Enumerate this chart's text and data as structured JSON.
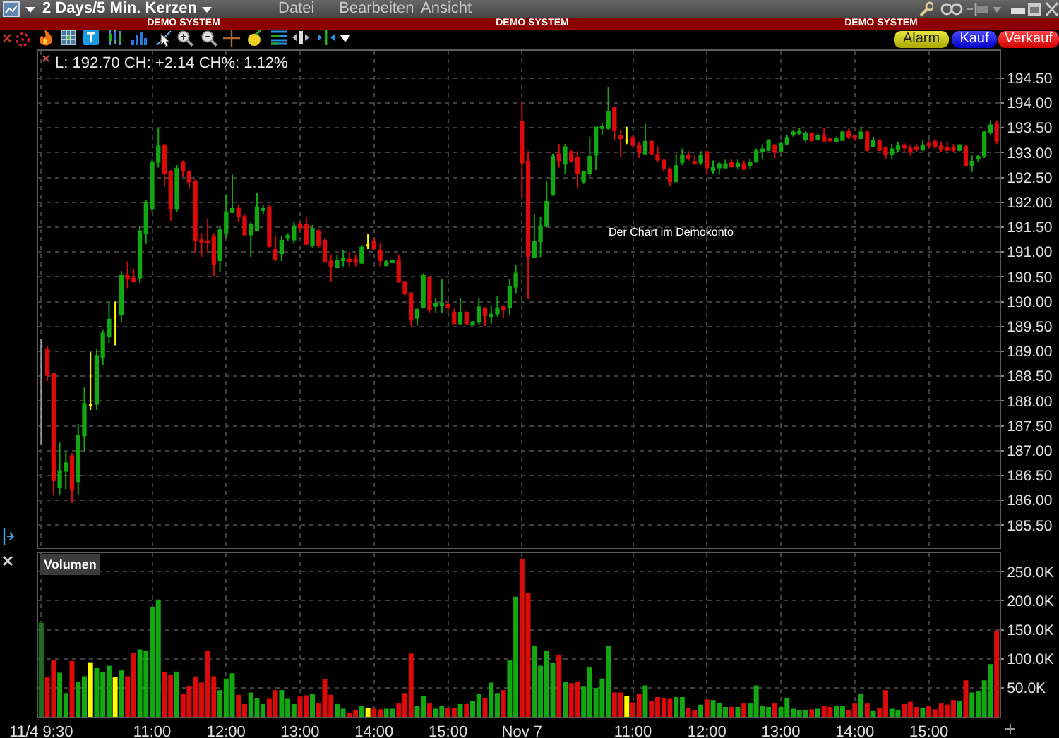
{
  "chart_data": [
    {
      "type": "candlestick",
      "title": "2 Days/5 Min. Kerzen",
      "tick_labels": "y",
      "grid": true,
      "categories": [
        null,
        null,
        null,
        null,
        null,
        null,
        null,
        null,
        null,
        null,
        null,
        null,
        null,
        null,
        null,
        null,
        null,
        null,
        null,
        null,
        null,
        null,
        null,
        null,
        null,
        null,
        null,
        null,
        null,
        null,
        null,
        null,
        null,
        null,
        null,
        null,
        null,
        null,
        null,
        null,
        null,
        null,
        null,
        null,
        null,
        null,
        null,
        null,
        null,
        null,
        null,
        null,
        null,
        null,
        null,
        null,
        null,
        null,
        null,
        null,
        null,
        null,
        null,
        null,
        null,
        null,
        null,
        null,
        null,
        null,
        null,
        null,
        null,
        null,
        null,
        null,
        null,
        null,
        null,
        null,
        null,
        null,
        null,
        null,
        null,
        null,
        null,
        null,
        null,
        null,
        null,
        null,
        null,
        null,
        null,
        null,
        null,
        null,
        null,
        null,
        null,
        null,
        null,
        null,
        null,
        null,
        null,
        null,
        null,
        null,
        null,
        null,
        null,
        null,
        null,
        null,
        null,
        null,
        null,
        null,
        null,
        null,
        null,
        null,
        null,
        null,
        null,
        null,
        null,
        null,
        null,
        null,
        null,
        null,
        null,
        null,
        null,
        null,
        null,
        null,
        null,
        null,
        null,
        null,
        null,
        null,
        null,
        null,
        null,
        null,
        null,
        null,
        null,
        null,
        null,
        null
      ],
      "ohlc": [
        [
          189.1,
          189.24,
          187.11,
          189.1
        ],
        [
          189.04,
          189.1,
          188.4,
          188.52
        ],
        [
          188.55,
          188.55,
          186.1,
          186.4
        ],
        [
          186.26,
          187.16,
          186.12,
          186.59
        ],
        [
          186.59,
          186.97,
          186.23,
          186.75
        ],
        [
          186.88,
          186.95,
          185.95,
          186.21
        ],
        [
          186.38,
          187.54,
          186.1,
          187.3
        ],
        [
          187.3,
          188.27,
          186.99,
          187.94
        ],
        [
          187.92,
          188.98,
          187.82,
          187.92
        ],
        [
          187.94,
          189.05,
          187.82,
          188.91
        ],
        [
          188.87,
          189.43,
          188.72,
          189.36
        ],
        [
          189.31,
          190.0,
          189.17,
          189.64
        ],
        [
          189.69,
          190.0,
          189.12,
          189.69
        ],
        [
          189.74,
          190.62,
          189.59,
          190.52
        ],
        [
          190.52,
          190.81,
          190.27,
          190.46
        ],
        [
          190.47,
          190.66,
          190.38,
          190.41
        ],
        [
          190.48,
          191.52,
          190.38,
          191.42
        ],
        [
          191.38,
          192.04,
          191.16,
          191.99
        ],
        [
          191.88,
          192.86,
          191.8,
          192.81
        ],
        [
          192.81,
          193.49,
          192.7,
          193.13
        ],
        [
          193.15,
          193.17,
          192.32,
          192.58
        ],
        [
          192.61,
          192.65,
          191.63,
          191.88
        ],
        [
          191.88,
          192.75,
          191.8,
          192.68
        ],
        [
          192.8,
          192.84,
          192.51,
          192.63
        ],
        [
          192.61,
          192.65,
          192.27,
          192.41
        ],
        [
          192.41,
          192.46,
          190.99,
          191.23
        ],
        [
          191.24,
          191.38,
          190.9,
          191.2
        ],
        [
          191.22,
          191.66,
          190.99,
          191.19
        ],
        [
          191.31,
          191.38,
          190.52,
          190.76
        ],
        [
          190.83,
          191.52,
          190.59,
          191.44
        ],
        [
          191.39,
          192.16,
          191.28,
          191.8
        ],
        [
          191.8,
          192.56,
          191.78,
          191.87
        ],
        [
          191.87,
          191.94,
          191.61,
          191.71
        ],
        [
          191.71,
          191.75,
          191.33,
          191.35
        ],
        [
          191.35,
          191.61,
          190.9,
          191.54
        ],
        [
          191.44,
          192.18,
          191.42,
          191.9
        ],
        [
          191.84,
          191.94,
          191.75,
          191.87
        ],
        [
          191.9,
          191.94,
          191.09,
          191.12
        ],
        [
          191.04,
          191.33,
          190.81,
          190.85
        ],
        [
          190.97,
          191.33,
          190.81,
          191.23
        ],
        [
          191.28,
          191.38,
          191.23,
          191.33
        ],
        [
          191.25,
          191.61,
          191.16,
          191.52
        ],
        [
          191.54,
          191.61,
          191.42,
          191.49
        ],
        [
          191.54,
          191.69,
          191.14,
          191.16
        ],
        [
          191.14,
          191.54,
          191.09,
          191.47
        ],
        [
          191.42,
          191.47,
          191.09,
          191.14
        ],
        [
          191.23,
          191.28,
          190.78,
          190.81
        ],
        [
          190.81,
          190.95,
          190.4,
          190.71
        ],
        [
          190.69,
          190.95,
          190.68,
          190.83
        ],
        [
          190.83,
          191.04,
          190.71,
          190.87
        ],
        [
          190.85,
          191.0,
          190.71,
          190.81
        ],
        [
          190.85,
          190.95,
          190.71,
          190.8
        ],
        [
          190.78,
          191.14,
          190.76,
          191.09
        ],
        [
          191.14,
          191.36,
          191.06,
          191.14
        ],
        [
          191.21,
          191.27,
          191.07,
          191.07
        ],
        [
          191.03,
          191.17,
          190.71,
          190.83
        ],
        [
          190.73,
          190.83,
          190.71,
          190.8
        ],
        [
          190.79,
          190.85,
          190.78,
          190.83
        ],
        [
          190.83,
          190.95,
          190.38,
          190.4
        ],
        [
          190.4,
          190.4,
          190.1,
          190.17
        ],
        [
          190.17,
          190.17,
          189.51,
          189.65
        ],
        [
          189.67,
          189.86,
          189.51,
          189.84
        ],
        [
          189.88,
          190.57,
          189.86,
          190.52
        ],
        [
          190.48,
          190.52,
          189.77,
          189.84
        ],
        [
          189.91,
          190.08,
          189.77,
          189.95
        ],
        [
          189.93,
          190.46,
          189.77,
          189.97
        ],
        [
          189.94,
          190.0,
          189.77,
          189.88
        ],
        [
          189.78,
          189.86,
          189.56,
          189.56
        ],
        [
          189.56,
          190.07,
          189.54,
          189.78
        ],
        [
          189.78,
          189.81,
          189.53,
          189.56
        ],
        [
          189.53,
          189.61,
          189.53,
          189.59
        ],
        [
          189.59,
          190.08,
          189.54,
          189.89
        ],
        [
          189.85,
          189.89,
          189.51,
          189.72
        ],
        [
          189.69,
          189.93,
          189.55,
          189.74
        ],
        [
          189.76,
          190.12,
          189.7,
          189.87
        ],
        [
          189.89,
          189.93,
          189.67,
          189.84
        ],
        [
          189.89,
          190.45,
          189.74,
          190.29
        ],
        [
          190.3,
          190.74,
          190.17,
          190.57
        ],
        [
          193.62,
          194.03,
          192.09,
          192.8
        ],
        [
          192.82,
          193.03,
          190.05,
          190.92
        ],
        [
          190.9,
          191.75,
          190.88,
          191.21
        ],
        [
          191.21,
          191.71,
          190.9,
          191.52
        ],
        [
          191.52,
          192.42,
          191.5,
          192.01
        ],
        [
          192.15,
          192.98,
          192.13,
          192.92
        ],
        [
          192.97,
          193.17,
          192.7,
          192.84
        ],
        [
          192.77,
          193.17,
          192.58,
          193.11
        ],
        [
          193.01,
          193.05,
          192.8,
          192.82
        ],
        [
          192.89,
          193.03,
          192.29,
          192.58
        ],
        [
          192.42,
          192.63,
          192.37,
          192.61
        ],
        [
          192.58,
          193.32,
          192.51,
          192.92
        ],
        [
          192.96,
          193.52,
          192.65,
          193.51
        ],
        [
          193.49,
          193.6,
          193.36,
          193.52
        ],
        [
          193.49,
          194.31,
          193.46,
          193.82
        ],
        [
          193.9,
          193.93,
          193.24,
          193.46
        ],
        [
          193.34,
          193.46,
          192.92,
          193.29
        ],
        [
          193.24,
          193.52,
          193.17,
          193.24
        ],
        [
          193.3,
          193.36,
          193.11,
          193.15
        ],
        [
          193.15,
          193.22,
          192.89,
          193.01
        ],
        [
          192.98,
          193.58,
          192.98,
          193.22
        ],
        [
          193.22,
          193.24,
          192.96,
          192.98
        ],
        [
          192.96,
          193.13,
          192.8,
          192.86
        ],
        [
          192.84,
          192.86,
          192.61,
          192.68
        ],
        [
          192.65,
          192.7,
          192.32,
          192.42
        ],
        [
          192.42,
          192.98,
          192.42,
          192.73
        ],
        [
          192.81,
          193.08,
          192.75,
          192.94
        ],
        [
          192.94,
          193.03,
          192.84,
          192.89
        ],
        [
          192.82,
          192.94,
          192.75,
          192.79
        ],
        [
          192.8,
          193.03,
          192.75,
          192.94
        ],
        [
          193.01,
          193.05,
          192.56,
          192.7
        ],
        [
          192.65,
          192.84,
          192.58,
          192.7
        ],
        [
          192.7,
          192.82,
          192.56,
          192.77
        ],
        [
          192.7,
          192.86,
          192.67,
          192.77
        ],
        [
          192.8,
          192.86,
          192.7,
          192.73
        ],
        [
          192.73,
          192.86,
          192.67,
          192.78
        ],
        [
          192.77,
          192.84,
          192.65,
          192.67
        ],
        [
          192.75,
          192.88,
          192.67,
          192.79
        ],
        [
          192.82,
          193.08,
          192.8,
          193.03
        ],
        [
          193.03,
          193.17,
          192.86,
          193.07
        ],
        [
          193.05,
          193.27,
          193.03,
          193.24
        ],
        [
          193.15,
          193.17,
          192.89,
          193.01
        ],
        [
          193.03,
          193.22,
          193.01,
          193.17
        ],
        [
          193.18,
          193.36,
          193.15,
          193.3
        ],
        [
          193.36,
          193.46,
          193.32,
          193.41
        ],
        [
          193.39,
          193.49,
          193.36,
          193.43
        ],
        [
          193.27,
          193.43,
          193.22,
          193.39
        ],
        [
          193.38,
          193.41,
          193.22,
          193.25
        ],
        [
          193.27,
          193.38,
          193.24,
          193.34
        ],
        [
          193.35,
          193.49,
          193.22,
          193.24
        ],
        [
          193.27,
          193.3,
          193.22,
          193.24
        ],
        [
          193.23,
          193.32,
          193.22,
          193.27
        ],
        [
          193.25,
          193.45,
          193.24,
          193.41
        ],
        [
          193.43,
          193.49,
          193.27,
          193.32
        ],
        [
          193.34,
          193.36,
          193.24,
          193.3
        ],
        [
          193.29,
          193.52,
          193.27,
          193.41
        ],
        [
          193.41,
          193.45,
          193.03,
          193.05
        ],
        [
          193.13,
          193.32,
          193.11,
          193.24
        ],
        [
          193.24,
          193.26,
          193.03,
          193.05
        ],
        [
          193.1,
          193.13,
          192.86,
          192.97
        ],
        [
          192.97,
          193.17,
          192.86,
          193.07
        ],
        [
          193.08,
          193.22,
          193.01,
          193.13
        ],
        [
          193.15,
          193.19,
          193.01,
          193.1
        ],
        [
          193.08,
          193.15,
          192.94,
          193.03
        ],
        [
          193.11,
          193.17,
          193.01,
          193.07
        ],
        [
          193.07,
          193.24,
          193.03,
          193.15
        ],
        [
          193.19,
          193.24,
          193.08,
          193.15
        ],
        [
          193.22,
          193.27,
          193.08,
          193.13
        ],
        [
          193.13,
          193.22,
          193.01,
          193.08
        ],
        [
          193.1,
          193.22,
          193.03,
          193.05
        ],
        [
          193.1,
          193.17,
          193.01,
          193.05
        ],
        [
          193.05,
          193.17,
          193.03,
          193.15
        ],
        [
          193.11,
          193.15,
          192.73,
          192.75
        ],
        [
          192.75,
          192.94,
          192.61,
          192.82
        ],
        [
          192.88,
          192.96,
          192.82,
          192.92
        ],
        [
          192.94,
          193.43,
          192.89,
          193.41
        ],
        [
          193.41,
          193.65,
          193.36,
          193.55
        ],
        [
          193.58,
          193.65,
          193.17,
          193.24
        ]
      ],
      "colors": [
        "#9a9a9a",
        "#dc0a0a",
        "#dc0a0a",
        "#12a812",
        "#12a812",
        "#dc0a0a",
        "#12a812",
        "#12a812",
        "#ffff00",
        "#12a812",
        "#12a812",
        "#12a812",
        "#ffff00",
        "#12a812",
        "#dc0a0a",
        "#dc0a0a",
        "#12a812",
        "#12a812",
        "#12a812",
        "#12a812",
        "#dc0a0a",
        "#dc0a0a",
        "#12a812",
        "#dc0a0a",
        "#dc0a0a",
        "#dc0a0a",
        "#dc0a0a",
        "#dc0a0a",
        "#dc0a0a",
        "#12a812",
        "#12a812",
        "#12a812",
        "#dc0a0a",
        "#dc0a0a",
        "#12a812",
        "#12a812",
        "#12a812",
        "#dc0a0a",
        "#dc0a0a",
        "#12a812",
        "#12a812",
        "#12a812",
        "#dc0a0a",
        "#dc0a0a",
        "#12a812",
        "#dc0a0a",
        "#dc0a0a",
        "#dc0a0a",
        "#12a812",
        "#12a812",
        "#dc0a0a",
        "#dc0a0a",
        "#12a812",
        "#ffff00",
        "#dc0a0a",
        "#dc0a0a",
        "#12a812",
        "#12a812",
        "#dc0a0a",
        "#dc0a0a",
        "#dc0a0a",
        "#12a812",
        "#12a812",
        "#dc0a0a",
        "#12a812",
        "#12a812",
        "#dc0a0a",
        "#dc0a0a",
        "#12a812",
        "#dc0a0a",
        "#12a812",
        "#12a812",
        "#dc0a0a",
        "#12a812",
        "#12a812",
        "#dc0a0a",
        "#12a812",
        "#12a812",
        "#dc0a0a",
        "#dc0a0a",
        "#12a812",
        "#12a812",
        "#12a812",
        "#12a812",
        "#dc0a0a",
        "#12a812",
        "#dc0a0a",
        "#dc0a0a",
        "#12a812",
        "#12a812",
        "#12a812",
        "#12a812",
        "#12a812",
        "#dc0a0a",
        "#dc0a0a",
        "#ffff00",
        "#dc0a0a",
        "#dc0a0a",
        "#12a812",
        "#dc0a0a",
        "#dc0a0a",
        "#dc0a0a",
        "#dc0a0a",
        "#12a812",
        "#12a812",
        "#dc0a0a",
        "#dc0a0a",
        "#12a812",
        "#dc0a0a",
        "#12a812",
        "#12a812",
        "#12a812",
        "#dc0a0a",
        "#12a812",
        "#dc0a0a",
        "#12a812",
        "#12a812",
        "#12a812",
        "#12a812",
        "#dc0a0a",
        "#12a812",
        "#12a812",
        "#12a812",
        "#12a812",
        "#12a812",
        "#dc0a0a",
        "#12a812",
        "#dc0a0a",
        "#dc0a0a",
        "#12a812",
        "#12a812",
        "#dc0a0a",
        "#dc0a0a",
        "#12a812",
        "#dc0a0a",
        "#12a812",
        "#dc0a0a",
        "#dc0a0a",
        "#12a812",
        "#12a812",
        "#dc0a0a",
        "#dc0a0a",
        "#dc0a0a",
        "#12a812",
        "#dc0a0a",
        "#dc0a0a",
        "#dc0a0a",
        "#dc0a0a",
        "#dc0a0a",
        "#12a812",
        "#dc0a0a",
        "#12a812",
        "#12a812",
        "#12a812",
        "#12a812",
        "#dc0a0a"
      ],
      "ylim": [
        185.05,
        195.05
      ],
      "yticks": [
        {
          "value": 185.5,
          "label": "185.50"
        },
        {
          "value": 186,
          "label": "186.00"
        },
        {
          "value": 186.5,
          "label": "186.50"
        },
        {
          "value": 187,
          "label": "187.00"
        },
        {
          "value": 187.5,
          "label": "187.50"
        },
        {
          "value": 188,
          "label": "188.00"
        },
        {
          "value": 188.5,
          "label": "188.50"
        },
        {
          "value": 189,
          "label": "189.00"
        },
        {
          "value": 189.5,
          "label": "189.50"
        },
        {
          "value": 190,
          "label": "190.00"
        },
        {
          "value": 190.5,
          "label": "190.50"
        },
        {
          "value": 191,
          "label": "191.00"
        },
        {
          "value": 191.5,
          "label": "191.50"
        },
        {
          "value": 192,
          "label": "192.00"
        },
        {
          "value": 192.5,
          "label": "192.50"
        },
        {
          "value": 193,
          "label": "193.00"
        },
        {
          "value": 193.5,
          "label": "193.50"
        },
        {
          "value": 194,
          "label": "194.00"
        },
        {
          "value": 194.5,
          "label": "194.50"
        }
      ],
      "annotations": [
        "Datei",
        "Bearbeiten",
        "Ansicht",
        "DEMO SYSTEM",
        "DEMO SYSTEM",
        "DEMO SYSTEM",
        "Alarm",
        "Kauf",
        "Verkauf",
        "L: 192.70 CH: +2.14 CH%: 1.12%",
        "Der Chart im Demokonto"
      ]
    },
    {
      "type": "bar",
      "title": "Volumen",
      "grid": true,
      "categories": [
        "11/4 9:30",
        null,
        null,
        null,
        null,
        null,
        null,
        null,
        null,
        null,
        null,
        null,
        null,
        null,
        null,
        null,
        null,
        null,
        "11:00",
        null,
        null,
        null,
        null,
        null,
        null,
        null,
        null,
        null,
        null,
        null,
        "12:00",
        null,
        null,
        null,
        null,
        null,
        null,
        null,
        null,
        null,
        null,
        null,
        "13:00",
        null,
        null,
        null,
        null,
        null,
        null,
        null,
        null,
        null,
        null,
        null,
        "14:00",
        null,
        null,
        null,
        null,
        null,
        null,
        null,
        null,
        null,
        null,
        null,
        "15:00",
        null,
        null,
        null,
        null,
        null,
        null,
        null,
        null,
        null,
        null,
        null,
        "Nov 7",
        null,
        null,
        null,
        null,
        null,
        null,
        null,
        null,
        null,
        null,
        null,
        null,
        null,
        null,
        null,
        null,
        null,
        "11:00",
        null,
        null,
        null,
        null,
        null,
        null,
        null,
        null,
        null,
        null,
        null,
        "12:00",
        null,
        null,
        null,
        null,
        null,
        null,
        null,
        null,
        null,
        null,
        null,
        "13:00",
        null,
        null,
        null,
        null,
        null,
        null,
        null,
        null,
        null,
        null,
        null,
        "14:00",
        null,
        null,
        null,
        null,
        null,
        null,
        null,
        null,
        null,
        null,
        null,
        "15:00",
        null,
        null,
        null,
        null,
        null,
        null,
        null,
        null,
        null,
        null,
        null
      ],
      "values": [
        162000,
        68000,
        98000,
        76000,
        41000,
        96000,
        61000,
        70000,
        94000,
        84000,
        77000,
        88000,
        68000,
        80000,
        70000,
        110000,
        116000,
        114000,
        189000,
        202000,
        78000,
        73000,
        78000,
        40000,
        53000,
        69000,
        59000,
        114000,
        70000,
        46000,
        66000,
        75000,
        38000,
        22000,
        42000,
        32000,
        22000,
        31000,
        46000,
        46000,
        31000,
        22000,
        35000,
        37000,
        40000,
        23000,
        65000,
        38000,
        22000,
        14000,
        7000,
        12000,
        19000,
        15000,
        14000,
        13000,
        14000,
        14000,
        23000,
        41000,
        109000,
        19000,
        36000,
        23000,
        14000,
        19000,
        15000,
        15000,
        22000,
        22000,
        27000,
        40000,
        33000,
        59000,
        41000,
        46000,
        97000,
        207000,
        271000,
        214000,
        122000,
        88000,
        114000,
        93000,
        107000,
        60000,
        58000,
        61000,
        52000,
        85000,
        50000,
        66000,
        122000,
        42000,
        42000,
        36000,
        25000,
        39000,
        54000,
        27000,
        34000,
        32000,
        31000,
        34000,
        34000,
        16000,
        11000,
        21000,
        30000,
        29000,
        24000,
        17000,
        17000,
        17000,
        23000,
        23000,
        54000,
        19000,
        17000,
        23000,
        17000,
        33000,
        14000,
        12000,
        12000,
        13000,
        14000,
        19000,
        17000,
        19000,
        19000,
        12000,
        23000,
        39000,
        23000,
        10000,
        15000,
        46000,
        14000,
        12000,
        22000,
        26000,
        17000,
        16000,
        19000,
        13000,
        23000,
        21000,
        29000,
        27000,
        63000,
        42000,
        44000,
        63000,
        91000,
        148000
      ],
      "colors": [
        "#1f6e1f",
        "#dc0a0a",
        "#dc0a0a",
        "#12a812",
        "#12a812",
        "#dc0a0a",
        "#12a812",
        "#12a812",
        "#ffff00",
        "#12a812",
        "#12a812",
        "#12a812",
        "#ffff00",
        "#12a812",
        "#dc0a0a",
        "#dc0a0a",
        "#12a812",
        "#12a812",
        "#12a812",
        "#12a812",
        "#dc0a0a",
        "#dc0a0a",
        "#12a812",
        "#dc0a0a",
        "#dc0a0a",
        "#dc0a0a",
        "#dc0a0a",
        "#dc0a0a",
        "#dc0a0a",
        "#12a812",
        "#12a812",
        "#12a812",
        "#dc0a0a",
        "#dc0a0a",
        "#12a812",
        "#12a812",
        "#12a812",
        "#dc0a0a",
        "#dc0a0a",
        "#12a812",
        "#12a812",
        "#12a812",
        "#dc0a0a",
        "#dc0a0a",
        "#12a812",
        "#dc0a0a",
        "#dc0a0a",
        "#dc0a0a",
        "#12a812",
        "#12a812",
        "#dc0a0a",
        "#dc0a0a",
        "#12a812",
        "#ffff00",
        "#dc0a0a",
        "#dc0a0a",
        "#12a812",
        "#12a812",
        "#dc0a0a",
        "#dc0a0a",
        "#dc0a0a",
        "#12a812",
        "#12a812",
        "#dc0a0a",
        "#12a812",
        "#12a812",
        "#dc0a0a",
        "#dc0a0a",
        "#12a812",
        "#dc0a0a",
        "#12a812",
        "#12a812",
        "#dc0a0a",
        "#12a812",
        "#12a812",
        "#dc0a0a",
        "#12a812",
        "#12a812",
        "#dc0a0a",
        "#dc0a0a",
        "#12a812",
        "#12a812",
        "#12a812",
        "#12a812",
        "#dc0a0a",
        "#12a812",
        "#dc0a0a",
        "#dc0a0a",
        "#12a812",
        "#12a812",
        "#12a812",
        "#12a812",
        "#12a812",
        "#dc0a0a",
        "#dc0a0a",
        "#ffff00",
        "#dc0a0a",
        "#dc0a0a",
        "#12a812",
        "#dc0a0a",
        "#dc0a0a",
        "#dc0a0a",
        "#dc0a0a",
        "#12a812",
        "#12a812",
        "#dc0a0a",
        "#dc0a0a",
        "#12a812",
        "#dc0a0a",
        "#12a812",
        "#12a812",
        "#12a812",
        "#dc0a0a",
        "#12a812",
        "#dc0a0a",
        "#12a812",
        "#12a812",
        "#12a812",
        "#12a812",
        "#dc0a0a",
        "#12a812",
        "#12a812",
        "#12a812",
        "#12a812",
        "#12a812",
        "#dc0a0a",
        "#12a812",
        "#dc0a0a",
        "#dc0a0a",
        "#12a812",
        "#12a812",
        "#dc0a0a",
        "#dc0a0a",
        "#12a812",
        "#dc0a0a",
        "#12a812",
        "#dc0a0a",
        "#dc0a0a",
        "#12a812",
        "#12a812",
        "#dc0a0a",
        "#dc0a0a",
        "#dc0a0a",
        "#12a812",
        "#dc0a0a",
        "#dc0a0a",
        "#dc0a0a",
        "#dc0a0a",
        "#dc0a0a",
        "#12a812",
        "#dc0a0a",
        "#12a812",
        "#12a812",
        "#12a812",
        "#12a812",
        "#dc0a0a"
      ],
      "ylim": [
        0,
        282000
      ],
      "yticks": [
        {
          "value": 50000,
          "label": "50.0K"
        },
        {
          "value": 100000,
          "label": "100.0K"
        },
        {
          "value": 150000,
          "label": "150.0K"
        },
        {
          "value": 200000,
          "label": "200.0K"
        },
        {
          "value": 250000,
          "label": "250.0K"
        }
      ]
    }
  ]
}
